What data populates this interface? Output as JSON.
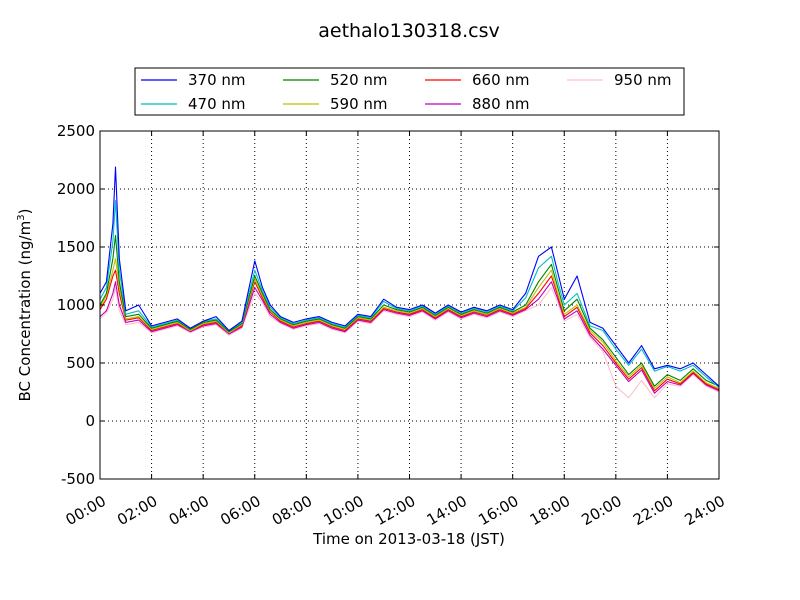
{
  "chart_data": {
    "type": "line",
    "title": "aethalo130318.csv",
    "xlabel": "Time on 2013-03-18 (JST)",
    "ylabel_prefix": "BC Concentration (ng/m",
    "ylabel_sup": "3",
    "ylabel_suffix": ")",
    "xlim_hours": [
      0,
      24
    ],
    "ylim": [
      -500,
      2500
    ],
    "grid": true,
    "legend_position": "top",
    "x_ticks": [
      {
        "hour": 0,
        "label": "00:00"
      },
      {
        "hour": 2,
        "label": "02:00"
      },
      {
        "hour": 4,
        "label": "04:00"
      },
      {
        "hour": 6,
        "label": "06:00"
      },
      {
        "hour": 8,
        "label": "08:00"
      },
      {
        "hour": 10,
        "label": "10:00"
      },
      {
        "hour": 12,
        "label": "12:00"
      },
      {
        "hour": 14,
        "label": "14:00"
      },
      {
        "hour": 16,
        "label": "16:00"
      },
      {
        "hour": 18,
        "label": "18:00"
      },
      {
        "hour": 20,
        "label": "20:00"
      },
      {
        "hour": 22,
        "label": "22:00"
      },
      {
        "hour": 24,
        "label": "24:00"
      }
    ],
    "y_ticks": [
      -500,
      0,
      500,
      1000,
      1500,
      2000,
      2500
    ],
    "x_hours": [
      0.0,
      0.25,
      0.5,
      0.6,
      0.75,
      1.0,
      1.5,
      2.0,
      2.5,
      3.0,
      3.5,
      4.0,
      4.5,
      5.0,
      5.5,
      6.0,
      6.3,
      6.6,
      7.0,
      7.5,
      8.0,
      8.5,
      9.0,
      9.5,
      10.0,
      10.5,
      11.0,
      11.5,
      12.0,
      12.5,
      13.0,
      13.5,
      14.0,
      14.5,
      15.0,
      15.5,
      16.0,
      16.5,
      17.0,
      17.5,
      17.75,
      18.0,
      18.5,
      19.0,
      19.5,
      20.0,
      20.5,
      21.0,
      21.5,
      22.0,
      22.5,
      23.0,
      23.5,
      24.0
    ],
    "series": [
      {
        "name": "370 nm",
        "color": "#0000ff",
        "values": [
          1100,
          1200,
          1700,
          2190,
          1400,
          950,
          1000,
          820,
          850,
          880,
          800,
          860,
          900,
          780,
          860,
          1380,
          1150,
          1000,
          900,
          850,
          880,
          900,
          850,
          820,
          920,
          900,
          1050,
          980,
          960,
          1000,
          930,
          1000,
          940,
          980,
          950,
          1000,
          960,
          1100,
          1420,
          1500,
          1280,
          1050,
          1250,
          850,
          800,
          650,
          500,
          650,
          450,
          480,
          450,
          500,
          400,
          300
        ]
      },
      {
        "name": "470 nm",
        "color": "#00bfbf",
        "values": [
          1050,
          1150,
          1550,
          1900,
          1300,
          920,
          950,
          810,
          840,
          870,
          800,
          860,
          880,
          780,
          850,
          1300,
          1120,
          980,
          890,
          840,
          870,
          890,
          840,
          810,
          910,
          890,
          1030,
          970,
          950,
          990,
          920,
          990,
          930,
          970,
          940,
          990,
          950,
          1060,
          1320,
          1420,
          1200,
          1000,
          1100,
          820,
          780,
          620,
          480,
          620,
          430,
          470,
          430,
          480,
          380,
          290
        ]
      },
      {
        "name": "520 nm",
        "color": "#008000",
        "values": [
          1000,
          1100,
          1400,
          1600,
          1200,
          900,
          920,
          800,
          830,
          860,
          790,
          850,
          870,
          770,
          840,
          1250,
          1100,
          960,
          880,
          830,
          860,
          880,
          830,
          800,
          900,
          880,
          1000,
          960,
          940,
          980,
          910,
          980,
          920,
          960,
          930,
          980,
          940,
          1000,
          1200,
          1350,
          1150,
          950,
          1050,
          800,
          700,
          550,
          400,
          500,
          300,
          400,
          350,
          450,
          350,
          300
        ]
      },
      {
        "name": "590 nm",
        "color": "#bfbf00",
        "values": [
          980,
          1080,
          1300,
          1400,
          1150,
          880,
          900,
          790,
          820,
          850,
          780,
          840,
          860,
          760,
          830,
          1220,
          1080,
          950,
          870,
          820,
          850,
          870,
          820,
          790,
          890,
          870,
          980,
          950,
          930,
          970,
          900,
          970,
          910,
          950,
          920,
          970,
          930,
          980,
          1150,
          1300,
          1100,
          920,
          1000,
          780,
          680,
          520,
          380,
          480,
          280,
          380,
          330,
          430,
          330,
          280
        ]
      },
      {
        "name": "660 nm",
        "color": "#ff0000",
        "values": [
          960,
          1050,
          1250,
          1300,
          1100,
          870,
          890,
          780,
          810,
          840,
          780,
          830,
          850,
          760,
          820,
          1200,
          1060,
          940,
          860,
          810,
          840,
          860,
          810,
          780,
          880,
          860,
          970,
          940,
          920,
          960,
          890,
          960,
          900,
          940,
          910,
          960,
          920,
          970,
          1100,
          1250,
          1080,
          900,
          980,
          760,
          650,
          500,
          360,
          460,
          260,
          360,
          320,
          420,
          320,
          270
        ]
      },
      {
        "name": "880 nm",
        "color": "#bf00bf",
        "values": [
          900,
          950,
          1100,
          1200,
          1000,
          850,
          870,
          770,
          800,
          830,
          770,
          820,
          840,
          750,
          810,
          1150,
          1040,
          920,
          850,
          800,
          830,
          850,
          800,
          770,
          870,
          850,
          960,
          930,
          910,
          950,
          880,
          950,
          890,
          930,
          900,
          950,
          910,
          960,
          1050,
          1200,
          1050,
          880,
          950,
          740,
          620,
          480,
          340,
          440,
          240,
          340,
          310,
          410,
          310,
          260
        ]
      },
      {
        "name": "950 nm",
        "color": "#ffc0cb",
        "values": [
          880,
          930,
          1050,
          1150,
          950,
          830,
          850,
          760,
          790,
          820,
          760,
          810,
          830,
          740,
          800,
          1100,
          1020,
          900,
          840,
          790,
          820,
          840,
          790,
          760,
          860,
          840,
          950,
          920,
          900,
          940,
          870,
          940,
          880,
          920,
          890,
          940,
          900,
          950,
          1000,
          1150,
          1020,
          860,
          920,
          720,
          600,
          300,
          200,
          350,
          200,
          320,
          300,
          400,
          300,
          250
        ]
      }
    ]
  }
}
